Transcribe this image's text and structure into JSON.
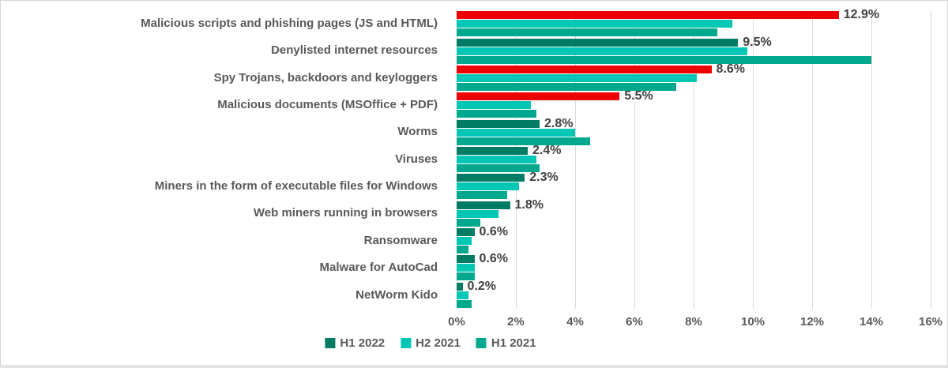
{
  "chart_data": {
    "type": "bar",
    "orientation": "horizontal",
    "title": "",
    "categories": [
      "Malicious scripts and phishing pages (JS and HTML)",
      "Denylisted internet resources",
      "Spy Trojans, backdoors and keyloggers",
      "Malicious documents (MSOffice + PDF)",
      "Worms",
      "Viruses",
      "Miners in the form of executable files for Windows",
      "Web miners running in browsers",
      "Ransomware",
      "Malware for AutoCad",
      "NetWorm Kido"
    ],
    "series": [
      {
        "name": "H1 2022",
        "values": [
          12.9,
          9.5,
          8.6,
          5.5,
          2.8,
          2.4,
          2.3,
          1.8,
          0.6,
          0.6,
          0.2
        ]
      },
      {
        "name": "H2 2021",
        "values": [
          9.3,
          9.8,
          8.1,
          2.5,
          4.0,
          2.7,
          2.1,
          1.4,
          0.5,
          0.6,
          0.4
        ]
      },
      {
        "name": "H1 2021",
        "values": [
          8.8,
          14.0,
          7.4,
          2.7,
          4.5,
          2.8,
          1.7,
          0.8,
          0.4,
          0.6,
          0.5
        ]
      }
    ],
    "data_labels_series_0": [
      "12.9%",
      "9.5%",
      "8.6%",
      "5.5%",
      "2.8%",
      "2.4%",
      "2.3%",
      "1.8%",
      "0.6%",
      "0.6%",
      "0.2%"
    ],
    "highlighted_category_indices": [
      0,
      2,
      3
    ],
    "xlim": [
      0,
      16
    ],
    "x_ticks": [
      "0%",
      "2%",
      "4%",
      "6%",
      "8%",
      "10%",
      "12%",
      "14%",
      "16%"
    ],
    "grid": "vertical-only",
    "legend_position": "bottom-center",
    "colors": {
      "series_h1_2022": "#007C64",
      "series_h2_2021": "#00C7B4",
      "series_h1_2021": "#00A88E",
      "highlight_red": "#ED0000",
      "gridline": "#D9D9D9",
      "axis_text": "#595959",
      "value_label_text": "#3F3F3F"
    }
  },
  "legend": {
    "items": [
      {
        "label": "H1 2022",
        "color": "#007C64"
      },
      {
        "label": "H2 2021",
        "color": "#00C7B4"
      },
      {
        "label": "H1 2021",
        "color": "#00A88E"
      }
    ]
  }
}
